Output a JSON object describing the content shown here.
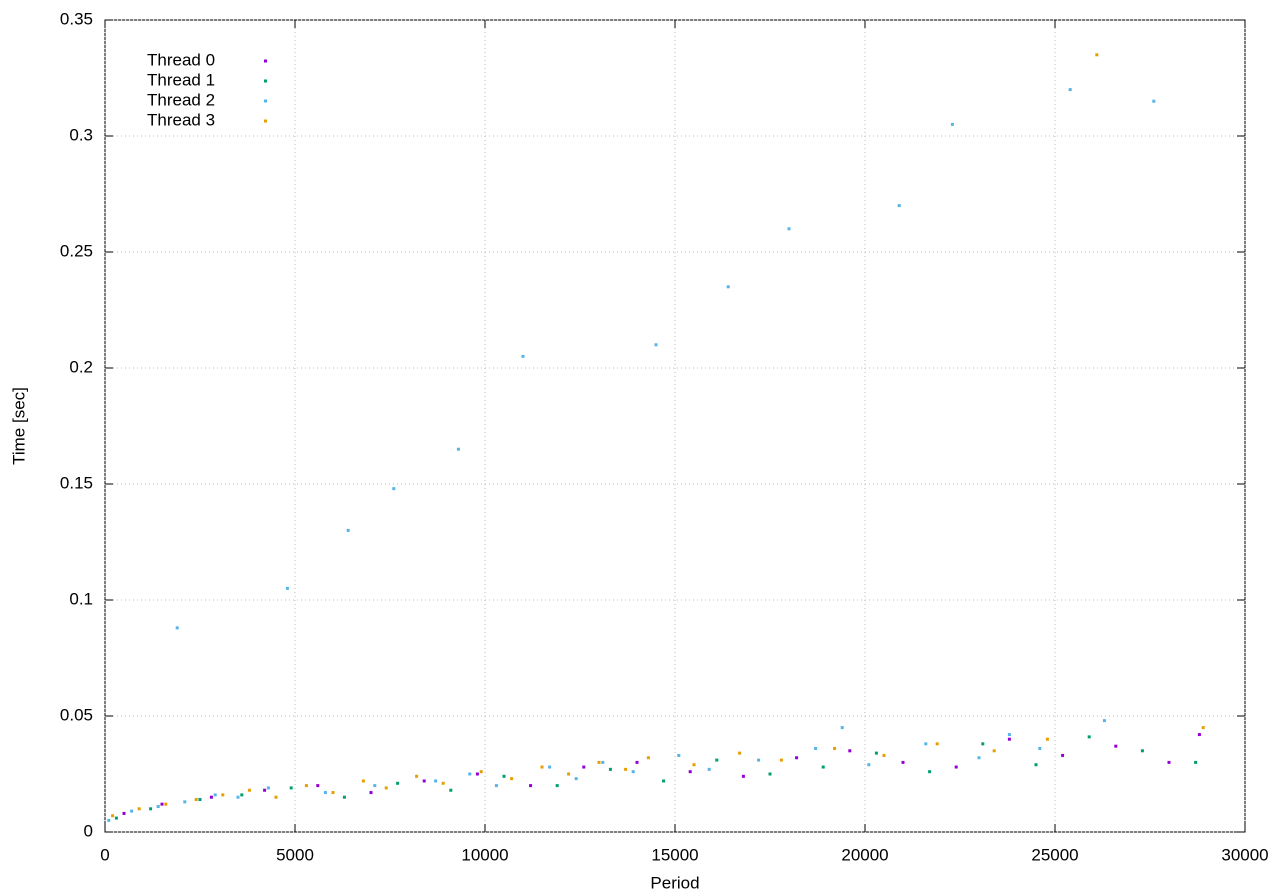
{
  "chart_data": {
    "type": "scatter",
    "x_label": "Period",
    "y_label": "Time [sec]",
    "xlim": [
      0,
      30000
    ],
    "xticks": [
      0,
      5000,
      10000,
      15000,
      20000,
      25000,
      30000
    ],
    "ylim": [
      0,
      0.35
    ],
    "yticks": [
      0,
      0.05,
      0.1,
      0.15,
      0.2,
      0.25,
      0.3,
      0.35
    ],
    "grid": true,
    "legend": "top-left",
    "series": [
      {
        "name": "Thread 0",
        "color": "#9400d3",
        "x": [
          500,
          1500,
          2800,
          4200,
          5600,
          7000,
          8400,
          9800,
          11200,
          12600,
          14000,
          15400,
          16800,
          18200,
          19600,
          21000,
          22400,
          23800,
          25200,
          26600,
          28000,
          28800
        ],
        "values": [
          0.008,
          0.012,
          0.015,
          0.018,
          0.02,
          0.017,
          0.022,
          0.025,
          0.02,
          0.028,
          0.03,
          0.026,
          0.024,
          0.032,
          0.035,
          0.03,
          0.028,
          0.04,
          0.033,
          0.037,
          0.03,
          0.042
        ]
      },
      {
        "name": "Thread 1",
        "color": "#009e73",
        "x": [
          300,
          1200,
          2500,
          3600,
          4900,
          6300,
          7700,
          9100,
          10500,
          11900,
          13300,
          14700,
          16100,
          17500,
          18900,
          20300,
          21700,
          23100,
          24500,
          25900,
          27300,
          28700
        ],
        "values": [
          0.006,
          0.01,
          0.014,
          0.016,
          0.019,
          0.015,
          0.021,
          0.018,
          0.024,
          0.02,
          0.027,
          0.022,
          0.031,
          0.025,
          0.028,
          0.034,
          0.026,
          0.038,
          0.029,
          0.041,
          0.035,
          0.03
        ]
      },
      {
        "name": "Thread 2",
        "color": "#56b4e9",
        "x": [
          100,
          700,
          1400,
          2100,
          1900,
          2900,
          3500,
          4300,
          4800,
          5800,
          6400,
          7100,
          7600,
          8700,
          9300,
          9600,
          10300,
          11000,
          11700,
          12400,
          13100,
          13900,
          14500,
          15100,
          15900,
          16400,
          17200,
          18000,
          18700,
          19400,
          20100,
          20900,
          21600,
          22300,
          23000,
          23800,
          24600,
          25400,
          26300,
          27600
        ],
        "values": [
          0.005,
          0.009,
          0.011,
          0.013,
          0.088,
          0.016,
          0.015,
          0.019,
          0.105,
          0.017,
          0.13,
          0.02,
          0.148,
          0.022,
          0.165,
          0.025,
          0.02,
          0.205,
          0.028,
          0.023,
          0.03,
          0.026,
          0.21,
          0.033,
          0.027,
          0.235,
          0.031,
          0.26,
          0.036,
          0.045,
          0.029,
          0.27,
          0.038,
          0.305,
          0.032,
          0.042,
          0.036,
          0.32,
          0.048,
          0.315
        ]
      },
      {
        "name": "Thread 3",
        "color": "#e69f00",
        "x": [
          200,
          900,
          1600,
          2400,
          3100,
          3800,
          4500,
          5300,
          6000,
          6800,
          7400,
          8200,
          8900,
          9900,
          10700,
          11500,
          12200,
          13000,
          13700,
          14300,
          15500,
          16700,
          17800,
          19200,
          20500,
          21900,
          23400,
          24800,
          26100,
          28900
        ],
        "values": [
          0.007,
          0.01,
          0.012,
          0.014,
          0.016,
          0.018,
          0.015,
          0.02,
          0.017,
          0.022,
          0.019,
          0.024,
          0.021,
          0.026,
          0.023,
          0.028,
          0.025,
          0.03,
          0.027,
          0.032,
          0.029,
          0.034,
          0.031,
          0.036,
          0.033,
          0.038,
          0.035,
          0.04,
          0.335,
          0.045
        ]
      }
    ]
  }
}
